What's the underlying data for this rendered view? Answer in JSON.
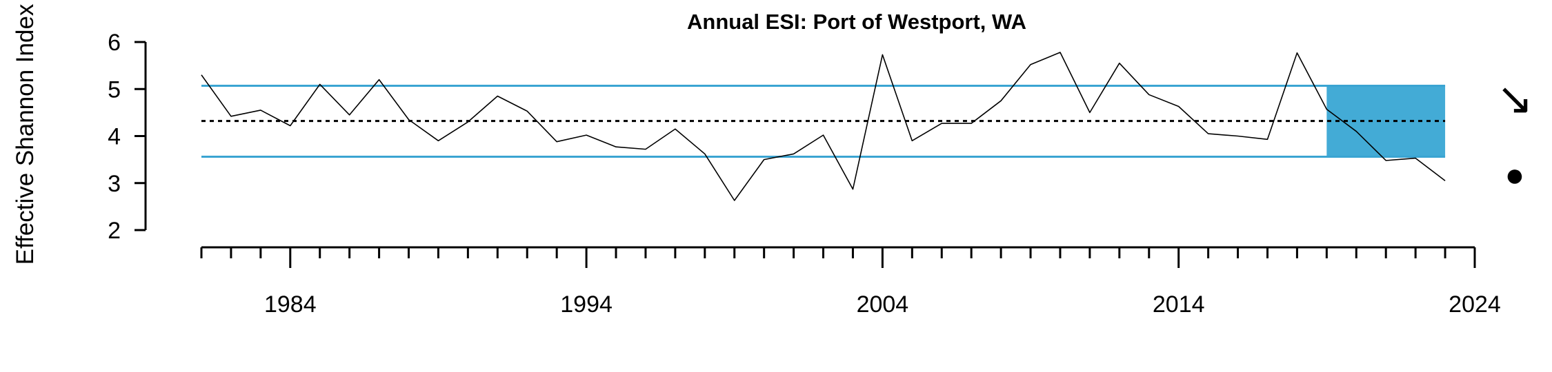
{
  "chart_data": {
    "type": "line",
    "title": "Annual ESI: Port of Westport, WA",
    "xlabel": "",
    "ylabel": "Effective Shannon Index",
    "xlim": [
      1981,
      2024
    ],
    "ylim": [
      2,
      6
    ],
    "x_ticks_labeled": [
      1984,
      1994,
      2004,
      2014,
      2024
    ],
    "y_ticks": [
      2,
      3,
      4,
      5,
      6
    ],
    "series": [
      {
        "x": [
          1981,
          1982,
          1983,
          1984,
          1985,
          1986,
          1987,
          1988,
          1989,
          1990,
          1991,
          1992,
          1993,
          1994,
          1995,
          1996,
          1997,
          1998,
          1999,
          2000,
          2001,
          2002,
          2003,
          2004,
          2005,
          2006,
          2007,
          2008,
          2009,
          2010,
          2011,
          2012,
          2013,
          2014,
          2015,
          2016,
          2017,
          2018,
          2019,
          2020,
          2021,
          2022,
          2023
        ],
        "values": [
          5.3,
          4.42,
          4.55,
          4.22,
          5.1,
          4.45,
          5.2,
          4.35,
          3.9,
          4.3,
          4.85,
          4.53,
          3.88,
          4.02,
          3.77,
          3.72,
          4.15,
          3.62,
          2.63,
          3.5,
          3.62,
          4.02,
          2.87,
          5.73,
          3.9,
          4.27,
          4.27,
          4.75,
          5.52,
          5.78,
          4.5,
          5.55,
          4.88,
          4.63,
          4.05,
          4.0,
          3.93,
          5.77,
          4.57,
          4.1,
          3.48,
          3.53,
          3.05
        ]
      }
    ],
    "mean_line": 4.32,
    "upper_sd_line": 5.07,
    "lower_sd_line": 3.56,
    "highlight_range_x": [
      2019,
      2023
    ],
    "trend_symbol": "↘",
    "status_symbol": "●",
    "colors": {
      "reference_lines": "#3aa4d2",
      "highlight": "#43abd6",
      "series": "#000000"
    },
    "grid": false
  }
}
